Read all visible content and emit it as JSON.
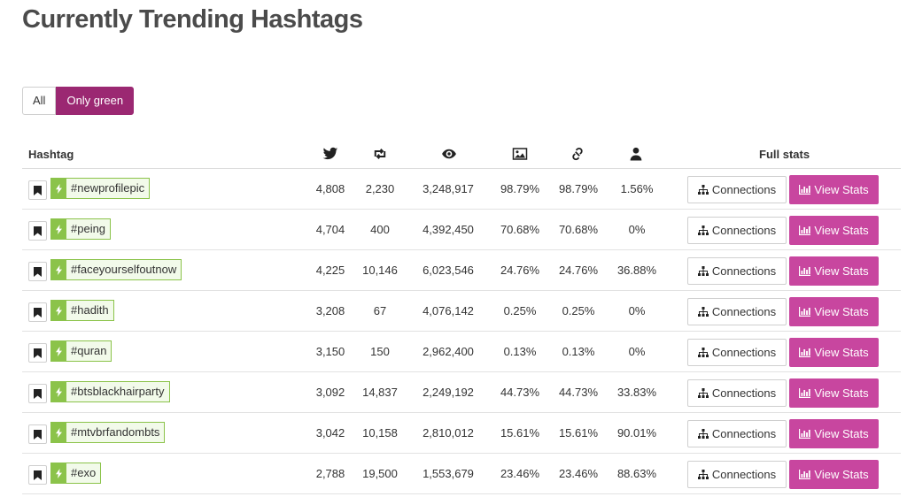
{
  "page": {
    "title": "Currently Trending Hashtags"
  },
  "filters": {
    "all_label": "All",
    "green_label": "Only green",
    "active": "Only green"
  },
  "table": {
    "headers": {
      "hashtag": "Hashtag",
      "tweets_icon": "twitter-bird-icon",
      "retweets_icon": "retweet-icon",
      "impressions_icon": "eye-icon",
      "media_icon": "image-icon",
      "links_icon": "link-icon",
      "users_icon": "user-icon",
      "full_stats": "Full stats"
    },
    "connections_label": "Connections",
    "view_stats_label": "View Stats",
    "rows": [
      {
        "tag": "#newprofilepic",
        "tweets": "4,808",
        "retweets": "2,230",
        "impressions": "3,248,917",
        "media": "98.79%",
        "links": "98.79%",
        "users": "1.56%"
      },
      {
        "tag": "#peing",
        "tweets": "4,704",
        "retweets": "400",
        "impressions": "4,392,450",
        "media": "70.68%",
        "links": "70.68%",
        "users": "0%"
      },
      {
        "tag": "#faceyourselfoutnow",
        "tweets": "4,225",
        "retweets": "10,146",
        "impressions": "6,023,546",
        "media": "24.76%",
        "links": "24.76%",
        "users": "36.88%"
      },
      {
        "tag": "#hadith",
        "tweets": "3,208",
        "retweets": "67",
        "impressions": "4,076,142",
        "media": "0.25%",
        "links": "0.25%",
        "users": "0%"
      },
      {
        "tag": "#quran",
        "tweets": "3,150",
        "retweets": "150",
        "impressions": "2,962,400",
        "media": "0.13%",
        "links": "0.13%",
        "users": "0%"
      },
      {
        "tag": "#btsblackhairparty",
        "tweets": "3,092",
        "retweets": "14,837",
        "impressions": "2,249,192",
        "media": "44.73%",
        "links": "44.73%",
        "users": "33.83%"
      },
      {
        "tag": "#mtvbrfandombts",
        "tweets": "3,042",
        "retweets": "10,158",
        "impressions": "2,810,012",
        "media": "15.61%",
        "links": "15.61%",
        "users": "90.01%"
      },
      {
        "tag": "#exo",
        "tweets": "2,788",
        "retweets": "19,500",
        "impressions": "1,553,679",
        "media": "23.46%",
        "links": "23.46%",
        "users": "88.63%"
      }
    ]
  },
  "colors": {
    "accent_purple": "#9b2872",
    "view_stats_pink": "#c8469f",
    "tag_green": "#8bc34a"
  }
}
